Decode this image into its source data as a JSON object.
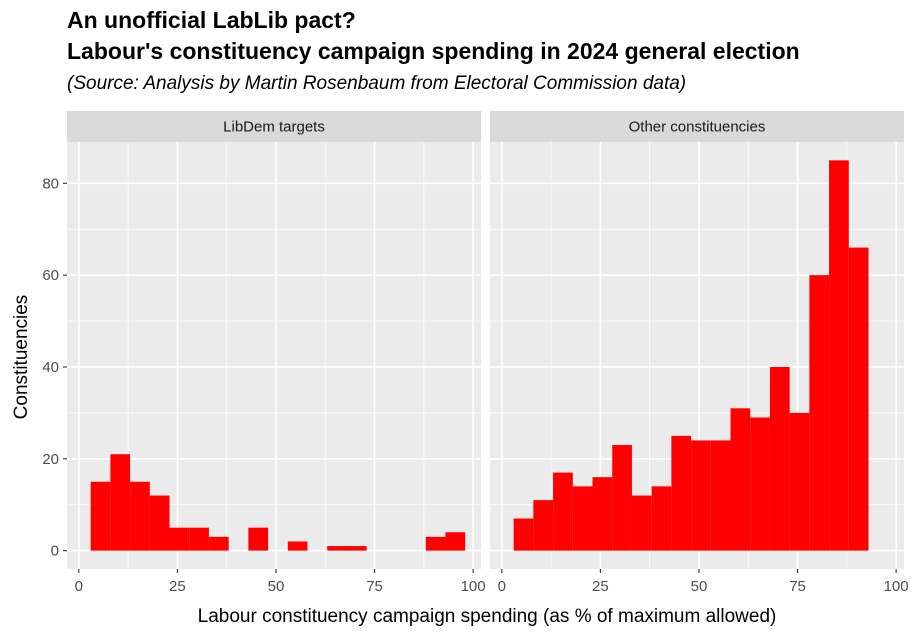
{
  "title_line1": "An unofficial LabLib pact?",
  "title_line2": "Labour's constituency campaign spending in 2024 general election",
  "subtitle": "(Source: Analysis by Martin Rosenbaum from Electoral Commission data)",
  "colors": {
    "bar": "#ff0000",
    "panel": "#ebebeb",
    "strip": "#d9d9d9",
    "grid": "#ffffff"
  },
  "chart_data": {
    "type": "bar",
    "xlabel": "Labour constituency campaign spending (as % of maximum allowed)",
    "ylabel": "Constituencies",
    "xlim": [
      -3,
      102
    ],
    "ylim": [
      -4,
      89
    ],
    "x_ticks": [
      0,
      25,
      50,
      75,
      100
    ],
    "y_ticks": [
      0,
      20,
      40,
      60,
      80
    ],
    "bin_width": 5,
    "grid": true,
    "panels": [
      {
        "name": "LibDem targets",
        "bins": [
          {
            "x": 5.5,
            "value": 15
          },
          {
            "x": 10.5,
            "value": 21
          },
          {
            "x": 15.5,
            "value": 15
          },
          {
            "x": 20.5,
            "value": 12
          },
          {
            "x": 25.5,
            "value": 5
          },
          {
            "x": 30.5,
            "value": 5
          },
          {
            "x": 35.5,
            "value": 3
          },
          {
            "x": 45.5,
            "value": 5
          },
          {
            "x": 55.5,
            "value": 2
          },
          {
            "x": 65.5,
            "value": 1
          },
          {
            "x": 70.5,
            "value": 1
          },
          {
            "x": 90.5,
            "value": 3
          },
          {
            "x": 95.5,
            "value": 4
          }
        ]
      },
      {
        "name": "Other constituencies",
        "bins": [
          {
            "x": 5.5,
            "value": 7
          },
          {
            "x": 10.5,
            "value": 11
          },
          {
            "x": 15.5,
            "value": 17
          },
          {
            "x": 20.5,
            "value": 14
          },
          {
            "x": 25.5,
            "value": 16
          },
          {
            "x": 30.5,
            "value": 23
          },
          {
            "x": 35.5,
            "value": 12
          },
          {
            "x": 40.5,
            "value": 14
          },
          {
            "x": 45.5,
            "value": 25
          },
          {
            "x": 50.5,
            "value": 24
          },
          {
            "x": 55.5,
            "value": 24
          },
          {
            "x": 60.5,
            "value": 31
          },
          {
            "x": 65.5,
            "value": 29
          },
          {
            "x": 70.5,
            "value": 40
          },
          {
            "x": 75.5,
            "value": 30
          },
          {
            "x": 80.5,
            "value": 60
          },
          {
            "x": 85.5,
            "value": 85
          },
          {
            "x": 90.5,
            "value": 66
          }
        ]
      }
    ]
  }
}
